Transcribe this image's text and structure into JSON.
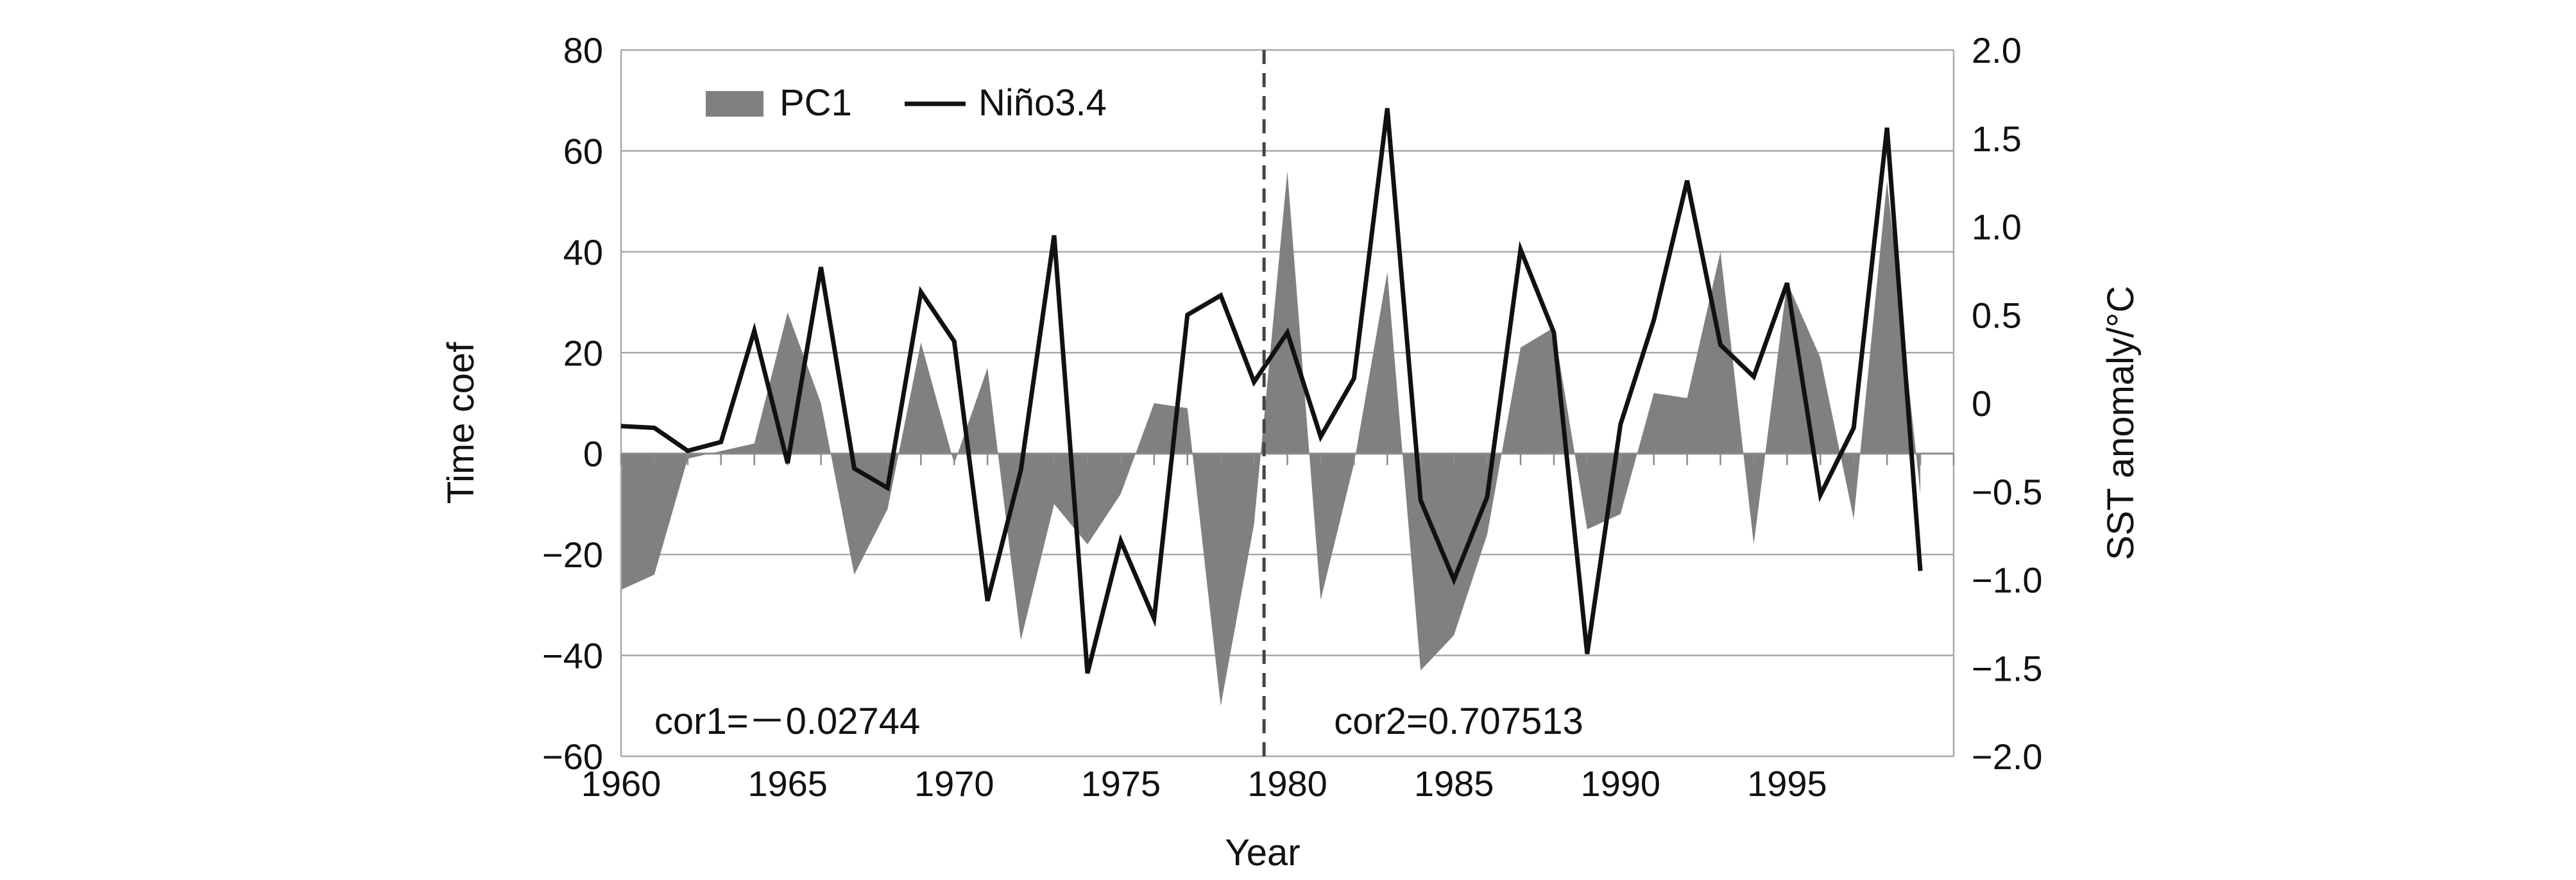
{
  "chart_data": {
    "type": "area",
    "xlabel": "Year",
    "ylabel": "Time coef",
    "y2label": "SST anomaly/°C",
    "xlim": [
      1960,
      1999
    ],
    "ylim": [
      -60,
      80
    ],
    "y2lim": [
      -2.0,
      2.0
    ],
    "x_ticks": [
      1960,
      1965,
      1970,
      1975,
      1980,
      1985,
      1990,
      1995
    ],
    "x_tick_labels": [
      "1960",
      "1965",
      "1970",
      "1975",
      "1980",
      "1985",
      "1990",
      "1995"
    ],
    "y_tick_labels": [
      "80",
      "60",
      "40",
      "20",
      "0",
      "−20",
      "−40",
      "−60"
    ],
    "y2_tick_labels": [
      "2.0",
      "1.5",
      "1.0",
      "0.5",
      "0",
      "−0.5",
      "−1.0",
      "−1.5",
      "−2.0"
    ],
    "grid": true,
    "legend_position": "top-left",
    "x": [
      1960,
      1961,
      1962,
      1963,
      1964,
      1965,
      1966,
      1967,
      1968,
      1969,
      1970,
      1971,
      1972,
      1973,
      1974,
      1975,
      1976,
      1977,
      1978,
      1979,
      1980,
      1981,
      1982,
      1983,
      1984,
      1985,
      1986,
      1987,
      1988,
      1989,
      1990,
      1991,
      1992,
      1993,
      1994,
      1995,
      1996,
      1997,
      1998,
      1999
    ],
    "series": [
      {
        "name": "PC1",
        "type": "area",
        "axis": "left",
        "color": "#808080",
        "values": [
          -27,
          -24,
          -1,
          0.5,
          2,
          28,
          10,
          -24,
          -11,
          22,
          -2,
          17,
          -37,
          -10,
          -18,
          -8,
          10,
          9,
          -50,
          -14,
          56,
          -29,
          -2,
          36,
          -43,
          -36,
          -16,
          21,
          25,
          -15,
          -12,
          12,
          11,
          40,
          -18,
          34,
          19,
          -13,
          54,
          -8
        ]
      },
      {
        "name": "Niño3.4",
        "type": "line",
        "axis": "right",
        "color": "#111111",
        "values": [
          -0.13,
          -0.14,
          -0.27,
          -0.22,
          0.41,
          -0.34,
          0.77,
          -0.37,
          -0.48,
          0.63,
          0.35,
          -1.12,
          -0.38,
          0.95,
          -1.53,
          -0.78,
          -1.22,
          0.5,
          0.61,
          0.12,
          0.4,
          -0.19,
          0.14,
          1.67,
          -0.55,
          -1.0,
          -0.53,
          0.87,
          0.4,
          -1.42,
          -0.12,
          0.47,
          1.26,
          0.33,
          0.15,
          0.68,
          -0.52,
          -0.14,
          1.56,
          -0.95
        ]
      }
    ],
    "annotations": [
      {
        "text": "cor1=－0.02744",
        "x": 1961.0,
        "y": -53
      },
      {
        "text": "cor2=0.707513",
        "x": 1981.4,
        "y": -53
      }
    ],
    "divider": {
      "x": 1979.3,
      "style": "dashed"
    }
  }
}
